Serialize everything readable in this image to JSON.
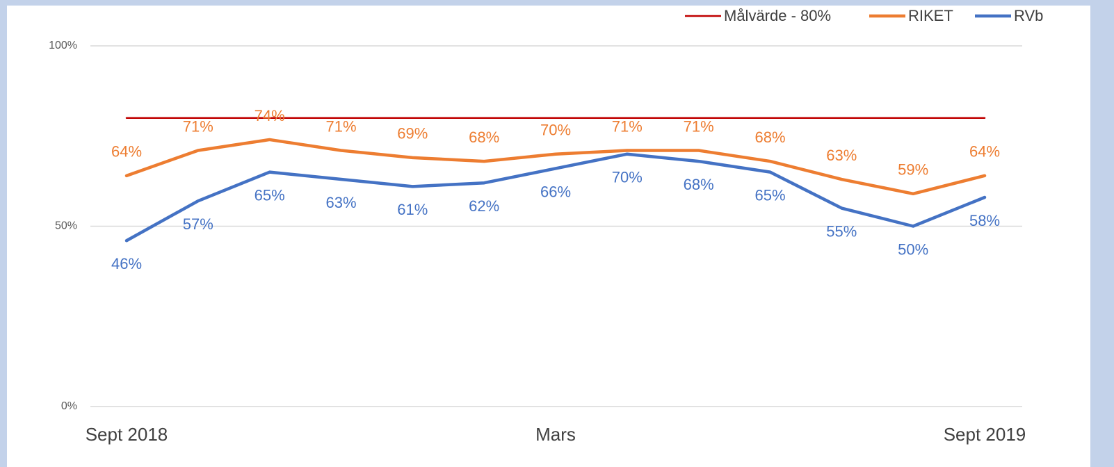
{
  "chart_data": {
    "type": "line",
    "categories": [
      "Sept 2018",
      null,
      null,
      null,
      null,
      null,
      "Mars",
      null,
      null,
      null,
      null,
      null,
      "Sept 2019"
    ],
    "series": [
      {
        "name": "Målvärde - 80%",
        "color": "#c00000",
        "values": [
          80,
          80,
          80,
          80,
          80,
          80,
          80,
          80,
          80,
          80,
          80,
          80,
          80
        ]
      },
      {
        "name": "RIKET",
        "color": "#ed7d31",
        "values": [
          64,
          71,
          74,
          71,
          69,
          68,
          70,
          71,
          71,
          68,
          63,
          59,
          64
        ],
        "value_labels": [
          "64%",
          "71%",
          "74%",
          "71%",
          "69%",
          "68%",
          "70%",
          "71%",
          "71%",
          "68%",
          "63%",
          "59%",
          "64%"
        ]
      },
      {
        "name": "RVb",
        "color": "#4472c4",
        "values": [
          46,
          57,
          65,
          63,
          61,
          62,
          66,
          70,
          68,
          65,
          55,
          50,
          58
        ],
        "value_labels": [
          "46%",
          "57%",
          "65%",
          "63%",
          "61%",
          "62%",
          "66%",
          "70%",
          "68%",
          "65%",
          "55%",
          "50%",
          "58%"
        ]
      }
    ],
    "ylim": [
      0,
      100
    ],
    "yticks": [
      {
        "value": 0,
        "label": "0%"
      },
      {
        "value": 50,
        "label": "50%"
      },
      {
        "value": 100,
        "label": "100%"
      }
    ],
    "grid": true,
    "legend": "top-right"
  }
}
